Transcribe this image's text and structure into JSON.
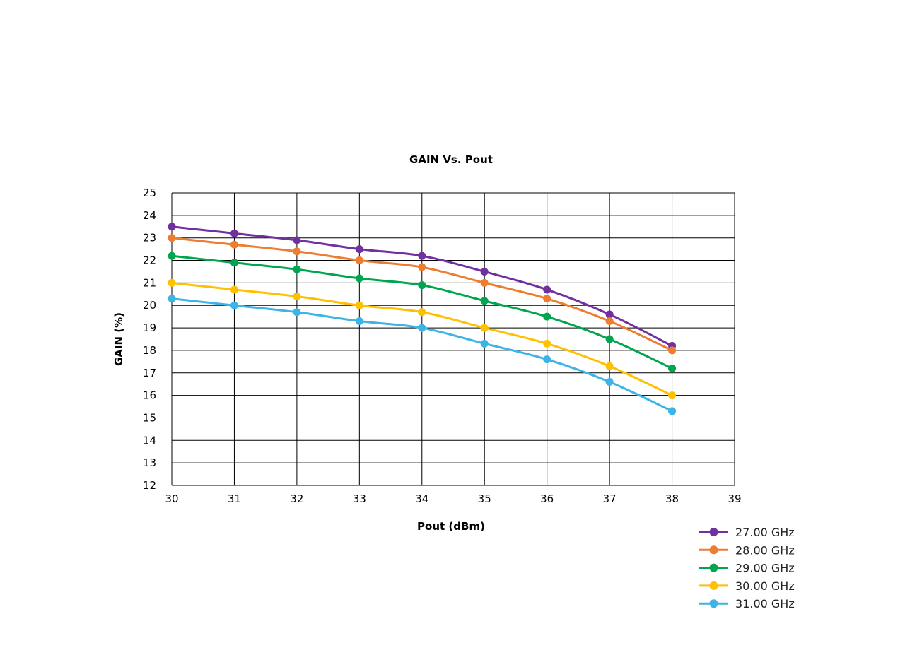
{
  "chart_data": {
    "type": "line",
    "title": "GAIN Vs. Pout",
    "xlabel": "Pout (dBm)",
    "ylabel": "GAIN (%)",
    "xlim": [
      30,
      39
    ],
    "ylim": [
      12,
      25
    ],
    "x_ticks": [
      30,
      31,
      32,
      33,
      34,
      35,
      36,
      37,
      38,
      39
    ],
    "y_ticks": [
      12,
      13,
      14,
      15,
      16,
      17,
      18,
      19,
      20,
      21,
      22,
      23,
      24,
      25
    ],
    "grid": true,
    "legend_position": "bottom-right",
    "x": [
      30,
      31,
      32,
      33,
      34,
      35,
      36,
      37,
      38
    ],
    "series": [
      {
        "name": "27.00 GHz",
        "color": "#7030A0",
        "values": [
          23.5,
          23.2,
          22.9,
          22.5,
          22.2,
          21.5,
          20.7,
          19.6,
          18.2
        ]
      },
      {
        "name": "28.00 GHz",
        "color": "#ED7D31",
        "values": [
          23.0,
          22.7,
          22.4,
          22.0,
          21.7,
          21.0,
          20.3,
          19.3,
          18.0
        ]
      },
      {
        "name": "29.00 GHz",
        "color": "#00A550",
        "values": [
          22.2,
          21.9,
          21.6,
          21.2,
          20.9,
          20.2,
          19.5,
          18.5,
          17.2
        ]
      },
      {
        "name": "30.00 GHz",
        "color": "#FFC000",
        "values": [
          21.0,
          20.7,
          20.4,
          20.0,
          19.7,
          19.0,
          18.3,
          17.3,
          16.0
        ]
      },
      {
        "name": "31.00 GHz",
        "color": "#3CB4E6",
        "values": [
          20.3,
          20.0,
          19.7,
          19.3,
          19.0,
          18.3,
          17.6,
          16.6,
          15.3
        ]
      }
    ]
  }
}
